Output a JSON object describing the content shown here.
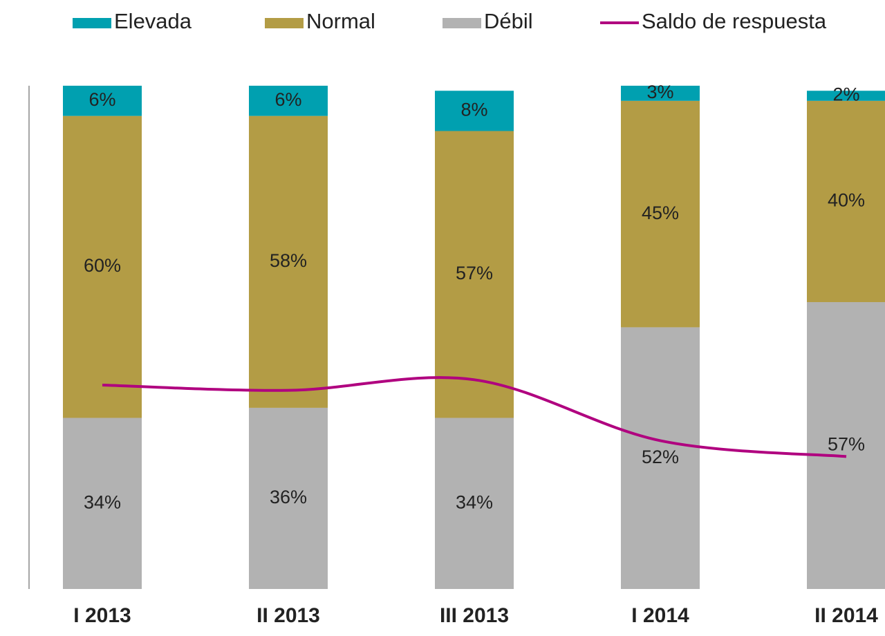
{
  "chart_data": {
    "type": "bar",
    "stacked": true,
    "categories": [
      "I 2013",
      "II 2013",
      "III 2013",
      "I 2014",
      "II 2014"
    ],
    "ylim": [
      0,
      100
    ],
    "y2lim": [
      -105,
      85
    ],
    "series": [
      {
        "name": "Débil",
        "color": "#b2b2b2",
        "values": [
          34,
          36,
          34,
          52,
          57
        ],
        "value_labels": [
          "34%",
          "36%",
          "34%",
          "52%",
          "57%"
        ]
      },
      {
        "name": "Normal",
        "color": "#b39c45",
        "values": [
          60,
          58,
          57,
          45,
          40
        ],
        "value_labels": [
          "60%",
          "58%",
          "57%",
          "45%",
          "40%"
        ]
      },
      {
        "name": "Elevada",
        "color": "#00a0b0",
        "values": [
          6,
          6,
          8,
          3,
          2
        ],
        "value_labels": [
          "6%",
          "6%",
          "8%",
          "3%",
          "2%"
        ]
      },
      {
        "name": "Saldo de respuesta",
        "type": "line",
        "axis": "y2",
        "color": "#b0007f",
        "values": [
          -28,
          -30,
          -26,
          -49,
          -55
        ]
      }
    ],
    "legend_order": [
      2,
      1,
      0,
      3
    ]
  }
}
